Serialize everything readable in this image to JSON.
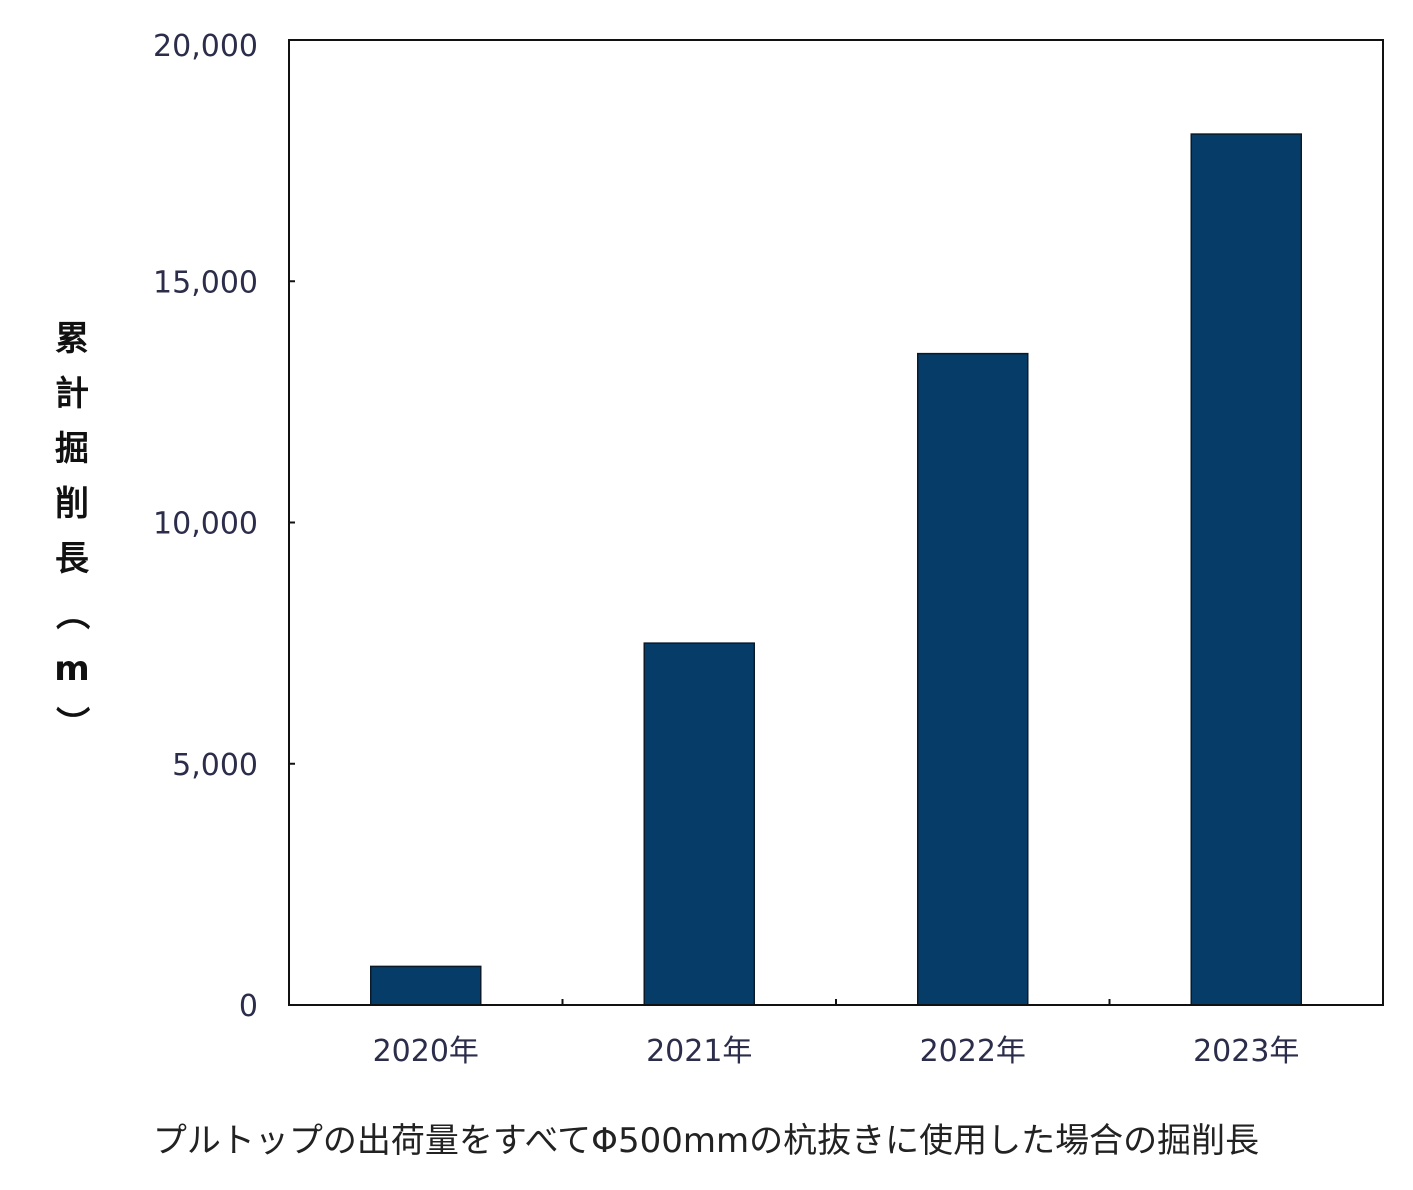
{
  "chart_data": {
    "type": "bar",
    "title": "",
    "caption": "プルトップの出荷量をすべてΦ500mmの杭抜きに使用した場合の掘削長",
    "xlabel": "",
    "ylabel": "累計掘削長（m）",
    "categories": [
      "2020年",
      "2021年",
      "2022年",
      "2023年"
    ],
    "series": [
      {
        "values": [
          800,
          7500,
          13500,
          18050
        ]
      }
    ],
    "ylim": [
      0,
      20000
    ],
    "yticks": [
      0,
      5000,
      10000,
      15000,
      20000
    ],
    "ytick_labels": [
      "0",
      "5,000",
      "10,000",
      "15,000",
      "20,000"
    ],
    "bar_color": "#053d68",
    "legend": "none",
    "grid": false
  }
}
